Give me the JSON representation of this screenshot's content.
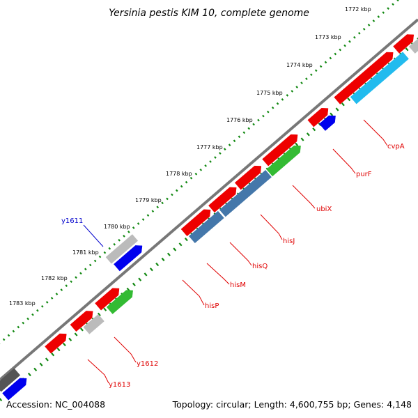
{
  "title": "Yersinia pestis KIM 10, complete genome",
  "footer": {
    "accession": "Accession: NC_004088",
    "topology": "Topology: circular; Length: 4,600,755 bp; Genes: 4,148"
  },
  "ruler_labels": [
    "1772 kbp",
    "1773 kbp",
    "1774 kbp",
    "1775 kbp",
    "1776 kbp",
    "1777 kbp",
    "1778 kbp",
    "1779 kbp",
    "1780 kbp",
    "1781 kbp",
    "1782 kbp",
    "1783 kbp"
  ],
  "gene_labels": [
    {
      "text": "cvpA",
      "color": "red"
    },
    {
      "text": "purF",
      "color": "red"
    },
    {
      "text": "ubiX",
      "color": "red"
    },
    {
      "text": "hisJ",
      "color": "red"
    },
    {
      "text": "hisQ",
      "color": "red"
    },
    {
      "text": "hisM",
      "color": "red"
    },
    {
      "text": "hisP",
      "color": "red"
    },
    {
      "text": "y1611",
      "color": "blue"
    },
    {
      "text": "y1612",
      "color": "red"
    },
    {
      "text": "y1613",
      "color": "red"
    }
  ],
  "colors": {
    "backbone": "#777777",
    "tick": "#118811",
    "cds_red": "#ee0000",
    "blue": "#0000ee",
    "gray_light": "#bbbbbb",
    "gray_dark": "#555555",
    "cyan": "#22bbee",
    "steel": "#4477aa",
    "green": "#33bb33",
    "label_red": "#e00000",
    "label_blue": "#0000cc"
  }
}
